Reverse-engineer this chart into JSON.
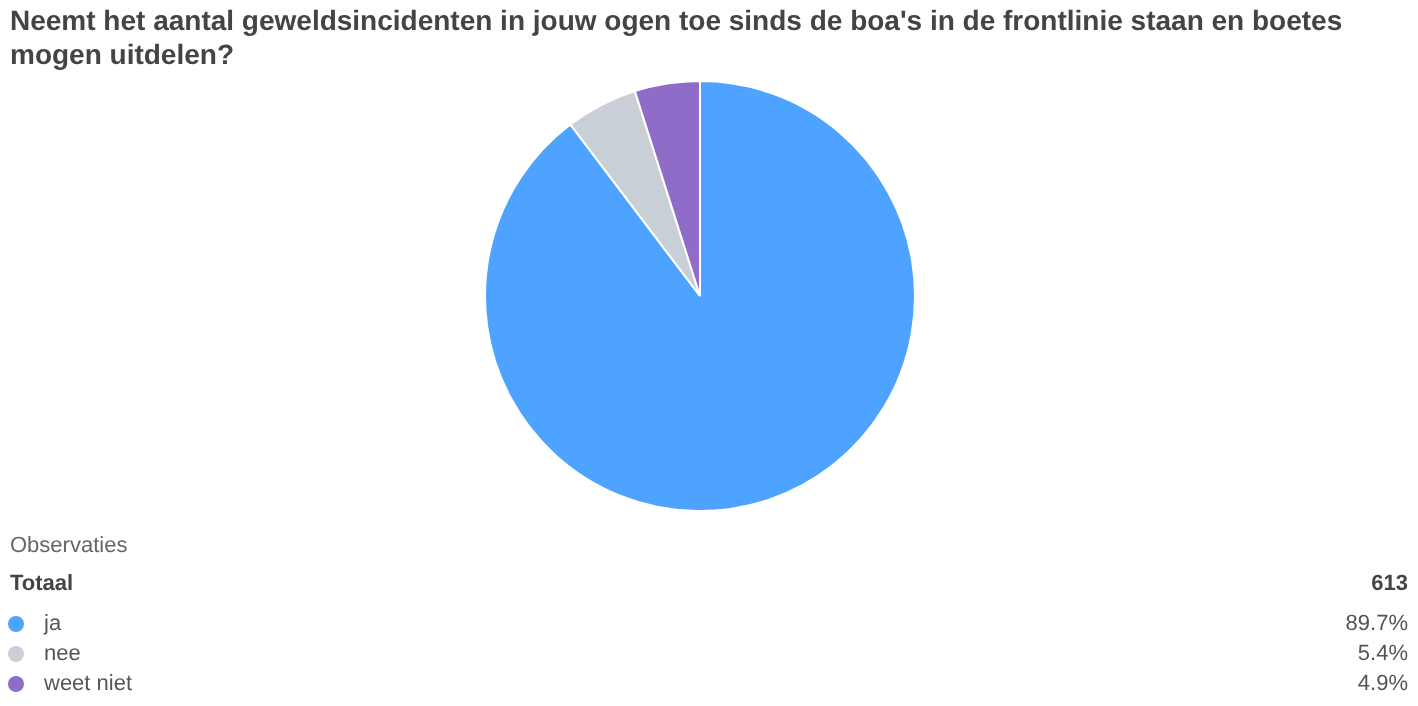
{
  "chart_data": {
    "type": "pie",
    "title": "Neemt het aantal geweldsincidenten in jouw ogen toe sinds de boa's in de frontlinie staan en boetes mogen uitdelen?",
    "categories": [
      "ja",
      "nee",
      "weet niet"
    ],
    "values": [
      89.7,
      5.4,
      4.9
    ],
    "colors": [
      "#4da3ff",
      "#c8cfd7",
      "#8e6cc7"
    ],
    "value_labels": [
      "89.7%",
      "5.4%",
      "4.9%"
    ],
    "legend": "bottom",
    "annotations": [
      "Observaties",
      "Totaal",
      "613"
    ]
  }
}
